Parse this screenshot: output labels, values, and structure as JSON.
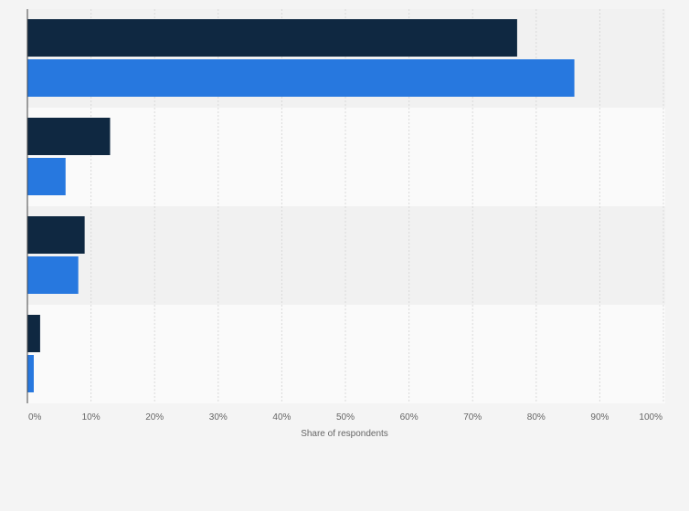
{
  "chart_data": {
    "type": "bar",
    "orientation": "horizontal",
    "categories": [
      "",
      "",
      "",
      ""
    ],
    "series": [
      {
        "color": "#0f2841",
        "values": [
          77,
          13,
          9,
          2
        ]
      },
      {
        "color": "#2778df",
        "values": [
          86,
          6,
          8,
          1
        ]
      }
    ],
    "xlabel": "Share of respondents",
    "xlim": [
      0,
      100
    ],
    "x_ticks": [
      "0%",
      "10%",
      "20%",
      "30%",
      "40%",
      "50%",
      "60%",
      "70%",
      "80%",
      "90%",
      "100%"
    ],
    "grid": true,
    "legend": "none"
  },
  "colors": {
    "background": "#f4f4f4",
    "band_dark": "#f1f1f1",
    "band_light": "#fafafa",
    "gridline": "#d9d9d9",
    "axis": "#444444",
    "text": "#666666"
  }
}
